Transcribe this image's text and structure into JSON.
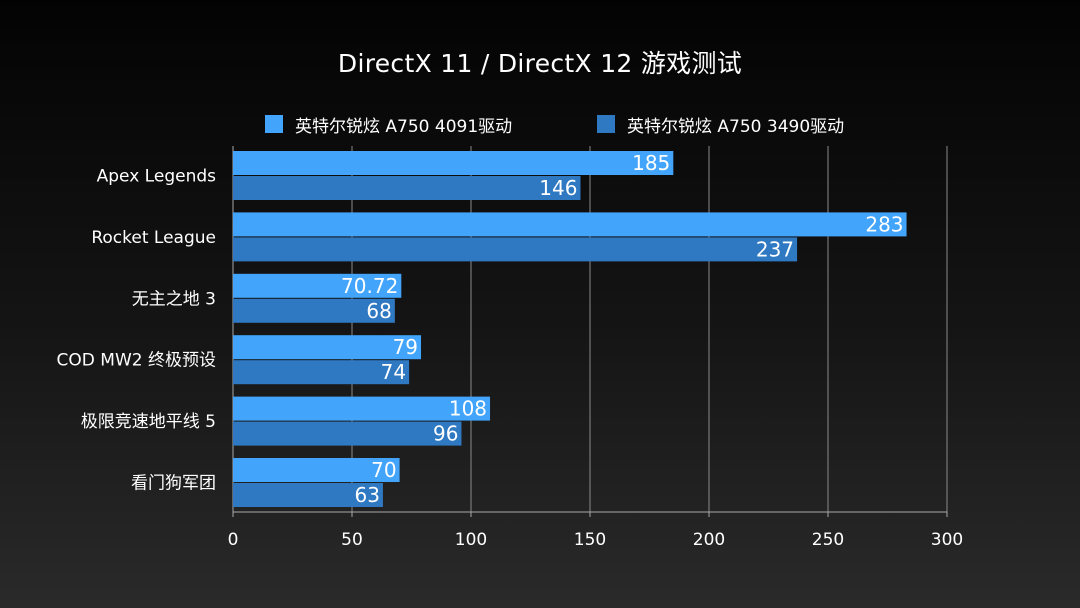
{
  "chart_data": {
    "type": "bar",
    "orientation": "horizontal",
    "title": "DirectX 11 / DirectX 12 游戏测试",
    "categories": [
      "Apex Legends",
      "Rocket League",
      "无主之地 3",
      "COD MW2 终极预设",
      "极限竞速地平线 5",
      "看门狗军团"
    ],
    "series": [
      {
        "name": "英特尔锐炫 A750 4091驱动",
        "color": "#42a4fb",
        "values": [
          185,
          283,
          70.72,
          79,
          108,
          70
        ],
        "labels": [
          "185",
          "283",
          "70.72",
          "79",
          "108",
          "70"
        ]
      },
      {
        "name": "英特尔锐炫 A750 3490驱动",
        "color": "#2f78c2",
        "values": [
          146,
          237,
          68,
          74,
          96,
          63
        ],
        "labels": [
          "146",
          "237",
          "68",
          "74",
          "96",
          "63"
        ]
      }
    ],
    "xlim": [
      0,
      300
    ],
    "xticks": [
      0,
      50,
      100,
      150,
      200,
      250,
      300
    ],
    "xtick_labels": [
      "0",
      "50",
      "100",
      "150",
      "200",
      "250",
      "300"
    ],
    "grid": true,
    "legend_position": "top",
    "xlabel": "",
    "ylabel": ""
  }
}
